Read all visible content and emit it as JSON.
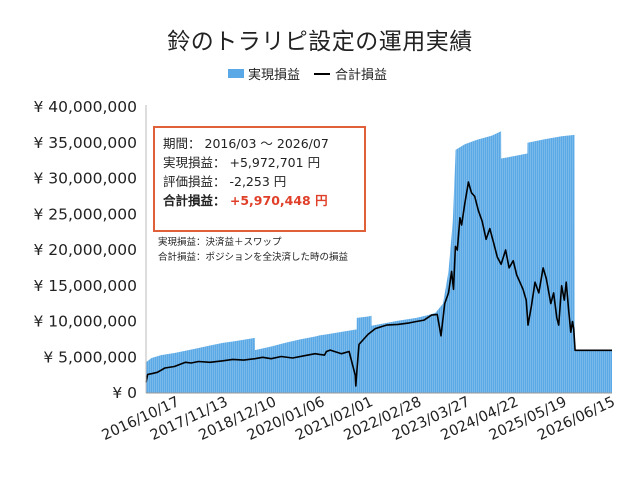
{
  "chart_data": {
    "type": "area",
    "title": "鈴のトラリピ設定の運用実績",
    "legend": {
      "position": "top",
      "items": [
        "実現損益",
        "合計損益"
      ]
    },
    "colors": {
      "realized": "#5aa9e6",
      "total": "#000000",
      "box_border": "#e0603a",
      "accent": "#e0402a"
    },
    "ylim": [
      0,
      40000000
    ],
    "y_ticks": [
      "¥ 0",
      "¥ 5,000,000",
      "¥ 10,000,000",
      "¥ 15,000,000",
      "¥ 20,000,000",
      "¥ 25,000,000",
      "¥ 30,000,000",
      "¥ 35,000,000",
      "¥ 40,000,000"
    ],
    "x_range": [
      "2016-03-01",
      "2026-07-01"
    ],
    "x_ticks": [
      "2016/10/17",
      "2017/11/13",
      "2018/12/10",
      "2020/01/06",
      "2021/02/01",
      "2022/02/28",
      "2023/03/27",
      "2024/04/22",
      "2025/05/19",
      "2026/06/15"
    ],
    "grid": false,
    "series": [
      {
        "name": "実現損益",
        "type": "area",
        "points": [
          [
            "2016-03-01",
            4300000
          ],
          [
            "2016-04-15",
            4900000
          ],
          [
            "2016-07-01",
            5300000
          ],
          [
            "2016-10-17",
            5600000
          ],
          [
            "2017-01-15",
            5900000
          ],
          [
            "2017-05-01",
            6300000
          ],
          [
            "2017-08-01",
            6650000
          ],
          [
            "2017-11-13",
            7000000
          ],
          [
            "2018-02-01",
            7200000
          ],
          [
            "2018-05-01",
            7450000
          ],
          [
            "2018-07-31",
            7700000
          ],
          [
            "2018-08-01",
            6000000
          ],
          [
            "2018-12-10",
            6500000
          ],
          [
            "2019-04-01",
            7000000
          ],
          [
            "2019-08-01",
            7500000
          ],
          [
            "2019-12-01",
            7900000
          ],
          [
            "2020-01-06",
            8050000
          ],
          [
            "2020-03-01",
            8200000
          ],
          [
            "2020-07-01",
            8550000
          ],
          [
            "2020-11-01",
            8900000
          ],
          [
            "2020-11-02",
            10500000
          ],
          [
            "2021-02-01",
            10700000
          ],
          [
            "2021-03-01",
            10800000
          ],
          [
            "2021-03-02",
            9400000
          ],
          [
            "2021-06-01",
            9700000
          ],
          [
            "2021-10-01",
            10100000
          ],
          [
            "2022-02-28",
            10500000
          ],
          [
            "2022-06-01",
            10900000
          ],
          [
            "2022-08-01",
            11200000
          ],
          [
            "2022-10-01",
            12500000
          ],
          [
            "2022-11-15",
            17000000
          ],
          [
            "2022-12-20",
            24000000
          ],
          [
            "2023-01-10",
            33000000
          ],
          [
            "2023-01-11",
            34000000
          ],
          [
            "2023-03-27",
            34800000
          ],
          [
            "2023-07-01",
            35400000
          ],
          [
            "2023-11-01",
            36000000
          ],
          [
            "2024-01-15",
            36600000
          ],
          [
            "2024-01-16",
            32800000
          ],
          [
            "2024-04-22",
            33100000
          ],
          [
            "2024-08-15",
            33500000
          ],
          [
            "2024-08-16",
            35000000
          ],
          [
            "2025-01-01",
            35500000
          ],
          [
            "2025-05-19",
            35900000
          ],
          [
            "2025-09-01",
            36100000
          ],
          [
            "2025-09-02",
            5972701
          ],
          [
            "2026-07-01",
            5972701
          ]
        ]
      },
      {
        "name": "合計損益",
        "type": "line",
        "points": [
          [
            "2016-03-01",
            1500000
          ],
          [
            "2016-03-15",
            2600000
          ],
          [
            "2016-04-15",
            2700000
          ],
          [
            "2016-06-01",
            2900000
          ],
          [
            "2016-08-01",
            3500000
          ],
          [
            "2016-10-17",
            3700000
          ],
          [
            "2017-01-15",
            4300000
          ],
          [
            "2017-03-01",
            4200000
          ],
          [
            "2017-05-01",
            4400000
          ],
          [
            "2017-08-01",
            4300000
          ],
          [
            "2017-11-13",
            4500000
          ],
          [
            "2018-02-01",
            4700000
          ],
          [
            "2018-05-01",
            4600000
          ],
          [
            "2018-08-01",
            4800000
          ],
          [
            "2018-10-01",
            5000000
          ],
          [
            "2018-12-10",
            4800000
          ],
          [
            "2019-03-01",
            5100000
          ],
          [
            "2019-06-01",
            4900000
          ],
          [
            "2019-09-01",
            5200000
          ],
          [
            "2019-12-01",
            5500000
          ],
          [
            "2020-01-06",
            5400000
          ],
          [
            "2020-02-15",
            5300000
          ],
          [
            "2020-03-01",
            5800000
          ],
          [
            "2020-04-01",
            6000000
          ],
          [
            "2020-07-01",
            5500000
          ],
          [
            "2020-09-01",
            5800000
          ],
          [
            "2020-10-20",
            2500000
          ],
          [
            "2020-10-25",
            1000000
          ],
          [
            "2020-11-05",
            3500000
          ],
          [
            "2020-11-20",
            6800000
          ],
          [
            "2021-02-01",
            8200000
          ],
          [
            "2021-04-01",
            9000000
          ],
          [
            "2021-07-01",
            9500000
          ],
          [
            "2021-10-01",
            9600000
          ],
          [
            "2022-01-01",
            9800000
          ],
          [
            "2022-02-28",
            10000000
          ],
          [
            "2022-05-01",
            10200000
          ],
          [
            "2022-07-01",
            10900000
          ],
          [
            "2022-08-15",
            11000000
          ],
          [
            "2022-09-15",
            8000000
          ],
          [
            "2022-10-15",
            12500000
          ],
          [
            "2022-11-15",
            14000000
          ],
          [
            "2022-12-10",
            17000000
          ],
          [
            "2022-12-25",
            14500000
          ],
          [
            "2023-01-10",
            20500000
          ],
          [
            "2023-01-25",
            20000000
          ],
          [
            "2023-02-15",
            24500000
          ],
          [
            "2023-03-01",
            23500000
          ],
          [
            "2023-03-27",
            26500000
          ],
          [
            "2023-04-25",
            29500000
          ],
          [
            "2023-05-20",
            28000000
          ],
          [
            "2023-06-15",
            27500000
          ],
          [
            "2023-07-15",
            25500000
          ],
          [
            "2023-08-15",
            24000000
          ],
          [
            "2023-09-15",
            21500000
          ],
          [
            "2023-10-15",
            23000000
          ],
          [
            "2023-11-15",
            21000000
          ],
          [
            "2023-12-15",
            19000000
          ],
          [
            "2024-01-15",
            18000000
          ],
          [
            "2024-02-20",
            20000000
          ],
          [
            "2024-03-20",
            17500000
          ],
          [
            "2024-04-22",
            18500000
          ],
          [
            "2024-05-20",
            16500000
          ],
          [
            "2024-06-15",
            15500000
          ],
          [
            "2024-07-10",
            14500000
          ],
          [
            "2024-08-05",
            13000000
          ],
          [
            "2024-08-20",
            9500000
          ],
          [
            "2024-09-15",
            12000000
          ],
          [
            "2024-10-15",
            15500000
          ],
          [
            "2024-11-15",
            14000000
          ],
          [
            "2024-12-20",
            17500000
          ],
          [
            "2025-01-15",
            16000000
          ],
          [
            "2025-02-20",
            12500000
          ],
          [
            "2025-03-15",
            14000000
          ],
          [
            "2025-04-10",
            10500000
          ],
          [
            "2025-04-25",
            9500000
          ],
          [
            "2025-05-19",
            15000000
          ],
          [
            "2025-06-10",
            13000000
          ],
          [
            "2025-06-25",
            15500000
          ],
          [
            "2025-07-15",
            11500000
          ],
          [
            "2025-08-01",
            8500000
          ],
          [
            "2025-08-15",
            10000000
          ],
          [
            "2025-08-25",
            9000000
          ],
          [
            "2025-09-05",
            5970448
          ],
          [
            "2026-07-01",
            5970448
          ]
        ]
      }
    ],
    "annotations": {
      "box": [
        {
          "label": "期間：",
          "value": "2016/03 ～ 2026/07"
        },
        {
          "label": "実現損益：",
          "value": "+5,972,701 円"
        },
        {
          "label": "評価損益：",
          "value": "-2,253 円"
        },
        {
          "label": "合計損益：",
          "value": "+5,970,448 円"
        }
      ],
      "notes": [
        "実現損益：決済益＋スワップ",
        "合計損益：ポジションを全決済した時の損益"
      ]
    }
  }
}
